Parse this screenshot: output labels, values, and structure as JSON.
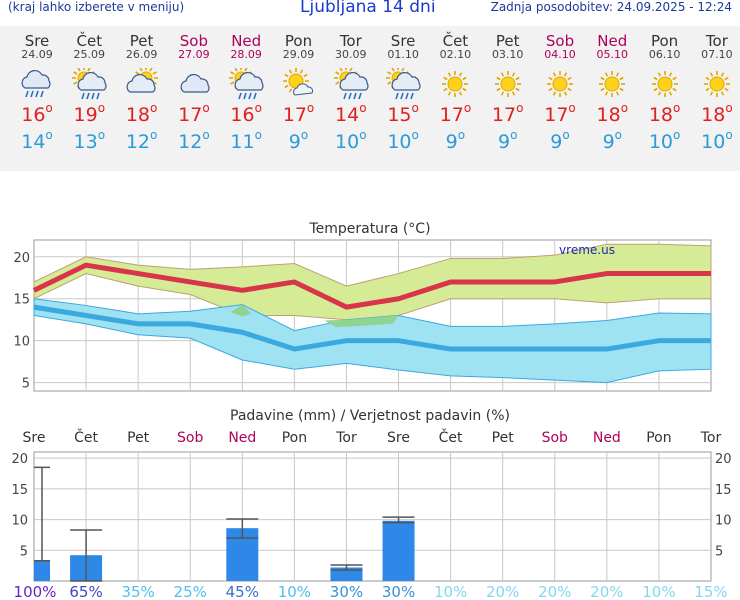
{
  "header": {
    "left_note": "(kraj lahko izberete v meniju)",
    "title": "Ljubljana 14 dni",
    "updated": "Zadnja posodobitev: 24.09.2025 - 12:24"
  },
  "colors": {
    "max": "#e02020",
    "min": "#2a9bd8",
    "max_line": "#d8344a",
    "min_line": "#3ba8e0",
    "max_band": "#d6eb96",
    "min_band": "#9fe2f2",
    "overlap": "#8fd490",
    "bar": "#2e88e8",
    "weekend": "#b0005a"
  },
  "days": [
    {
      "name": "Sre",
      "date": "24.09",
      "icon": "cloud-rain-icon",
      "max": "16",
      "min": "14",
      "weekend": false
    },
    {
      "name": "Čet",
      "date": "25.09",
      "icon": "sun-cloud-rain-icon",
      "max": "19",
      "min": "13",
      "weekend": false
    },
    {
      "name": "Pet",
      "date": "26.09",
      "icon": "partly-cloudy-icon",
      "max": "18",
      "min": "12",
      "weekend": false
    },
    {
      "name": "Sob",
      "date": "27.09",
      "icon": "cloud-icon",
      "max": "17",
      "min": "12",
      "weekend": true
    },
    {
      "name": "Ned",
      "date": "28.09",
      "icon": "sun-cloud-rain-icon",
      "max": "16",
      "min": "11",
      "weekend": true
    },
    {
      "name": "Pon",
      "date": "29.09",
      "icon": "sun-cloud-icon",
      "max": "17",
      "min": "9",
      "weekend": false
    },
    {
      "name": "Tor",
      "date": "30.09",
      "icon": "sun-cloud-rain-icon",
      "max": "14",
      "min": "10",
      "weekend": false
    },
    {
      "name": "Sre",
      "date": "01.10",
      "icon": "sun-cloud-rain-icon",
      "max": "15",
      "min": "10",
      "weekend": false
    },
    {
      "name": "Čet",
      "date": "02.10",
      "icon": "sun-icon",
      "max": "17",
      "min": "9",
      "weekend": false
    },
    {
      "name": "Pet",
      "date": "03.10",
      "icon": "sun-icon",
      "max": "17",
      "min": "9",
      "weekend": false
    },
    {
      "name": "Sob",
      "date": "04.10",
      "icon": "sun-icon",
      "max": "17",
      "min": "9",
      "weekend": true
    },
    {
      "name": "Ned",
      "date": "05.10",
      "icon": "sun-icon",
      "max": "18",
      "min": "9",
      "weekend": true
    },
    {
      "name": "Pon",
      "date": "06.10",
      "icon": "sun-icon",
      "max": "18",
      "min": "10",
      "weekend": false
    },
    {
      "name": "Tor",
      "date": "07.10",
      "icon": "sun-icon",
      "max": "18",
      "min": "10",
      "weekend": false
    }
  ],
  "chart_data": [
    {
      "type": "line",
      "title": "Temperatura (°C)",
      "watermark": "vreme.us",
      "ylim": [
        4,
        22
      ],
      "yticks": [
        5,
        10,
        15,
        20
      ],
      "x": [
        "Sre",
        "Čet",
        "Pet",
        "Sob",
        "Ned",
        "Pon",
        "Tor",
        "Sre",
        "Čet",
        "Pet",
        "Sob",
        "Ned",
        "Pon",
        "Tor"
      ],
      "series": [
        {
          "values": [
            16,
            19,
            18,
            17,
            16,
            17,
            14,
            15,
            17,
            17,
            17,
            18,
            18,
            18
          ],
          "band_low": [
            15,
            18,
            16.5,
            15.5,
            13,
            13,
            12.5,
            13,
            15,
            15,
            15,
            14.5,
            15,
            15
          ],
          "band_high": [
            17,
            20,
            19,
            18.5,
            18.8,
            19.2,
            16.5,
            18,
            19.8,
            19.8,
            20.2,
            21.5,
            21.5,
            21.3
          ]
        },
        {
          "values": [
            14,
            13,
            12,
            12,
            11,
            9,
            10,
            10,
            9,
            9,
            9,
            9,
            10,
            10
          ],
          "band_low": [
            13,
            12,
            10.7,
            10.3,
            7.7,
            6.6,
            7.3,
            6.5,
            5.8,
            5.6,
            5.3,
            5,
            6.4,
            6.6
          ],
          "band_high": [
            15,
            14.2,
            13.2,
            13.5,
            14.3,
            11.2,
            12.5,
            13,
            11.7,
            11.7,
            12,
            12.4,
            13.3,
            13.2
          ]
        }
      ]
    },
    {
      "type": "bar",
      "title": "Padavine (mm) / Verjetnost padavin (%)",
      "ylim": [
        0,
        21
      ],
      "yticks": [
        0,
        5,
        10,
        15,
        20
      ],
      "categories": [
        "Sre",
        "Čet",
        "Pet",
        "Sob",
        "Ned",
        "Pon",
        "Tor",
        "Sre",
        "Čet",
        "Pet",
        "Sob",
        "Ned",
        "Pon",
        "Tor"
      ],
      "values": [
        3.3,
        4.2,
        0,
        0,
        8.6,
        0,
        2.2,
        9.8,
        0,
        0,
        0,
        0,
        0,
        0
      ],
      "err_low": [
        3.3,
        0,
        0,
        0,
        7,
        0,
        1.8,
        9.5,
        0,
        0,
        0,
        0,
        0,
        0
      ],
      "err_high": [
        18.5,
        8.3,
        0,
        0,
        10.1,
        0,
        2.6,
        10.4,
        0,
        0,
        0,
        0,
        0,
        0
      ],
      "probability": [
        "100%",
        "65%",
        "35%",
        "25%",
        "45%",
        "10%",
        "30%",
        "30%",
        "10%",
        "20%",
        "20%",
        "20%",
        "10%",
        "15%"
      ],
      "prob_colors": [
        "#6a22c0",
        "#3a4bc0",
        "#4ec0e8",
        "#4ec0e8",
        "#3a6ec8",
        "#4ec0e8",
        "#3a90d8",
        "#3a90d8",
        "#86d6f0",
        "#86d6f0",
        "#86d6f0",
        "#86d6f0",
        "#86d6f0",
        "#86d6f0"
      ]
    }
  ]
}
